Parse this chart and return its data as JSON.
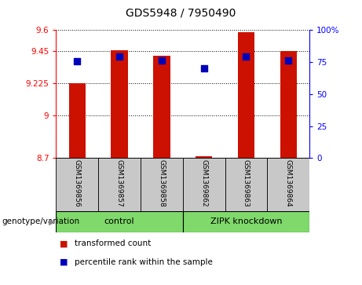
{
  "title": "GDS5948 / 7950490",
  "samples": [
    "GSM1369856",
    "GSM1369857",
    "GSM1369858",
    "GSM1369862",
    "GSM1369863",
    "GSM1369864"
  ],
  "red_values": [
    9.225,
    9.46,
    9.42,
    8.715,
    9.585,
    9.45
  ],
  "blue_values": [
    9.38,
    9.415,
    9.385,
    9.33,
    9.415,
    9.385
  ],
  "ymin": 8.7,
  "ymax": 9.6,
  "left_yticks": [
    8.7,
    9.0,
    9.225,
    9.45,
    9.6
  ],
  "left_ytick_labels": [
    "8.7",
    "9",
    "9.225",
    "9.45",
    "9.6"
  ],
  "right_ticks_pct": [
    0,
    25,
    50,
    75,
    100
  ],
  "right_tick_labels": [
    "0",
    "25",
    "50",
    "75",
    "100%"
  ],
  "bar_color": "#CC1100",
  "dot_color": "#0000BB",
  "bar_width": 0.4,
  "dot_size": 30,
  "tick_area_bg": "#C8C8C8",
  "green_color": "#7FD96B",
  "genotype_label": "genotype/variation",
  "control_label": "control",
  "zipk_label": "ZIPK knockdown",
  "legend_items": [
    {
      "color": "#CC1100",
      "label": "transformed count"
    },
    {
      "color": "#0000BB",
      "label": "percentile rank within the sample"
    }
  ]
}
